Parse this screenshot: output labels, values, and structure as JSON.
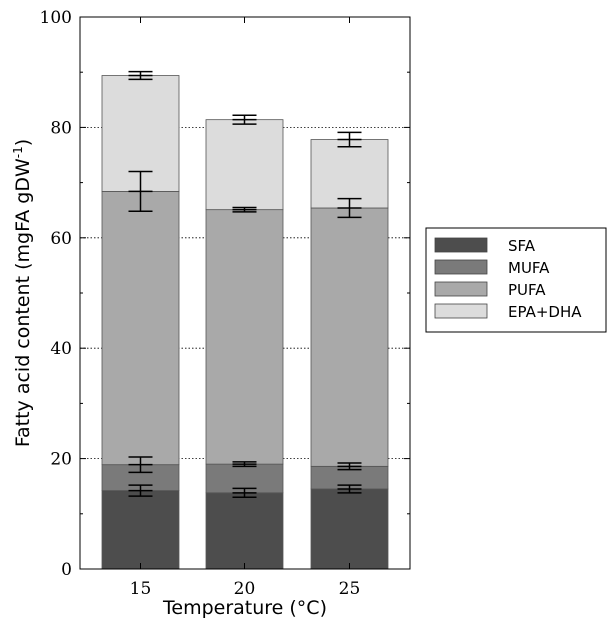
{
  "chart_data": {
    "type": "bar",
    "stacked": true,
    "categories": [
      "15",
      "20",
      "25"
    ],
    "xlabel": "Temperature (°C)",
    "ylabel": "Fatty acid content (mgFA gDW",
    "ylabel_sup": "-1",
    "ylabel_end": ")",
    "ylim": [
      0,
      100
    ],
    "yticks": [
      0,
      20,
      40,
      60,
      80,
      100
    ],
    "grid": "horizontal dotted",
    "legend_position": "right",
    "series": [
      {
        "name": "SFA",
        "color": "#4d4d4d",
        "values": [
          14.2,
          13.8,
          14.5
        ],
        "errors": [
          1.0,
          0.8,
          0.7
        ]
      },
      {
        "name": "MUFA",
        "color": "#7a7a7a",
        "values": [
          4.7,
          5.2,
          4.1
        ],
        "errors": [
          1.4,
          0.4,
          0.6
        ]
      },
      {
        "name": "PUFA",
        "color": "#a9a9a9",
        "values": [
          49.5,
          46.1,
          46.8
        ],
        "errors": [
          3.6,
          0.4,
          1.7
        ]
      },
      {
        "name": "EPA+DHA",
        "color": "#dcdcdc",
        "values": [
          21.0,
          16.3,
          12.4
        ],
        "errors": [
          0.7,
          0.8,
          1.3
        ]
      }
    ]
  }
}
